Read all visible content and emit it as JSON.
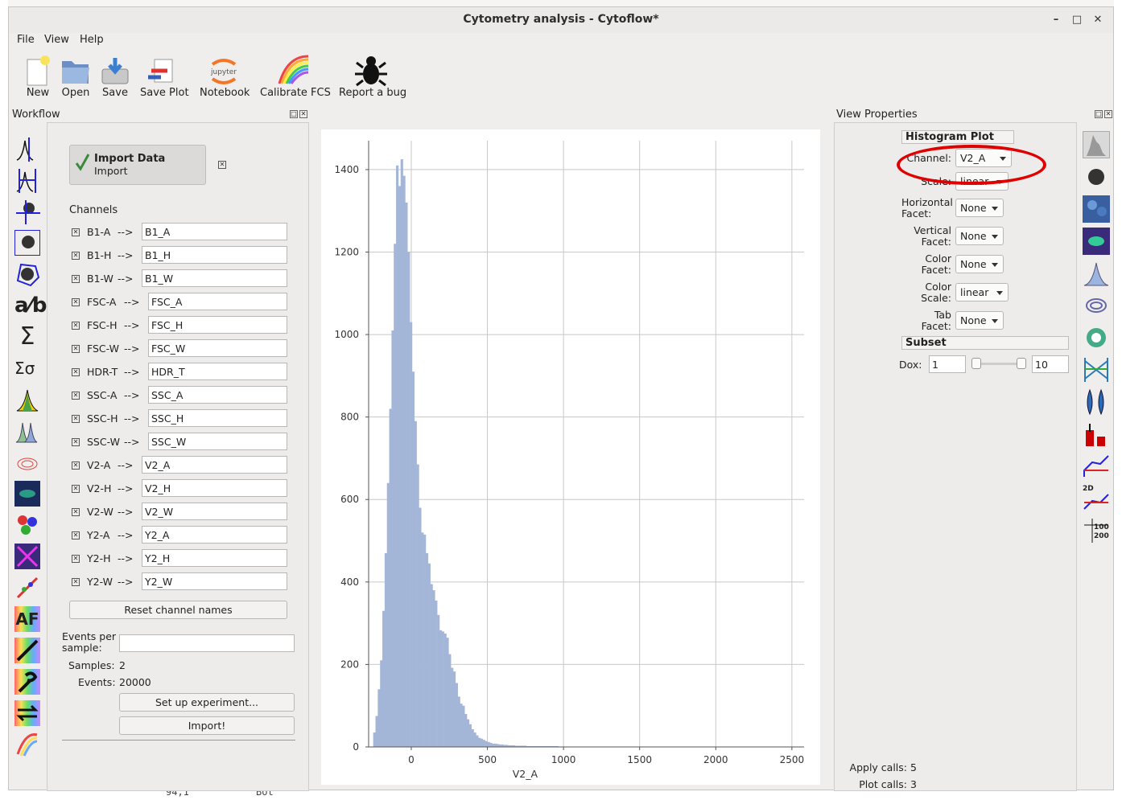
{
  "window": {
    "title": "Cytometry analysis - Cytoflow*"
  },
  "menu": {
    "file": "File",
    "view": "View",
    "help": "Help"
  },
  "toolbar": {
    "new": "New",
    "open": "Open",
    "save": "Save",
    "save_plot": "Save Plot",
    "notebook": "Notebook",
    "calibrate": "Calibrate FCS",
    "report_bug": "Report a bug",
    "jupyter_text": "jupyter"
  },
  "workflow": {
    "title": "Workflow",
    "import_item": {
      "title": "Import Data",
      "subtitle": "Import"
    },
    "channels_label": "Channels",
    "channels": [
      {
        "from": "B1-A",
        "to": "B1_A"
      },
      {
        "from": "B1-H",
        "to": "B1_H"
      },
      {
        "from": "B1-W",
        "to": "B1_W"
      },
      {
        "from": "FSC-A",
        "to": "FSC_A"
      },
      {
        "from": "FSC-H",
        "to": "FSC_H"
      },
      {
        "from": "FSC-W",
        "to": "FSC_W"
      },
      {
        "from": "HDR-T",
        "to": "HDR_T"
      },
      {
        "from": "SSC-A",
        "to": "SSC_A"
      },
      {
        "from": "SSC-H",
        "to": "SSC_H"
      },
      {
        "from": "SSC-W",
        "to": "SSC_W"
      },
      {
        "from": "V2-A",
        "to": "V2_A"
      },
      {
        "from": "V2-H",
        "to": "V2_H"
      },
      {
        "from": "V2-W",
        "to": "V2_W"
      },
      {
        "from": "Y2-A",
        "to": "Y2_A"
      },
      {
        "from": "Y2-H",
        "to": "Y2_H"
      },
      {
        "from": "Y2-W",
        "to": "Y2_W"
      }
    ],
    "arrow": "-->",
    "reset_label": "Reset channel names",
    "events_per_sample_label": "Events per sample:",
    "events_per_sample_value": "",
    "samples_label": "Samples:",
    "samples_value": "2",
    "events_label": "Events:",
    "events_value": "20000",
    "setup_label": "Set up experiment...",
    "import_label": "Import!"
  },
  "view_properties": {
    "title": "View Properties",
    "histogram_title": "Histogram Plot",
    "channel_label": "Channel:",
    "channel_value": "V2_A",
    "scale_label": "Scale:",
    "scale_value": "linear",
    "hfacet_label": "Horizontal Facet:",
    "hfacet_value": "None",
    "vfacet_label": "Vertical Facet:",
    "vfacet_value": "None",
    "colorfacet_label": "Color Facet:",
    "colorfacet_value": "None",
    "colorscale_label": "Color Scale:",
    "colorscale_value": "linear",
    "tabfacet_label": "Tab Facet:",
    "tabfacet_value": "None",
    "subset_title": "Subset",
    "dox_label": "Dox:",
    "dox_min": "1",
    "dox_max": "10",
    "dox_slider_position": 0.0,
    "apply_calls_label": "Apply calls:",
    "apply_calls_value": "5",
    "plot_calls_label": "Plot calls:",
    "plot_calls_value": "3"
  },
  "background": {
    "bottom_left": "94,1",
    "bottom_right": "Bot"
  },
  "chart_data": {
    "type": "bar",
    "xlabel": "V2_A",
    "ylabel": "",
    "bin_width": 15,
    "x_start": -250,
    "xlim": [
      -280,
      2580
    ],
    "ylim": [
      0,
      1470
    ],
    "xticks": [
      0,
      500,
      1000,
      1500,
      2000,
      2500
    ],
    "yticks": [
      0,
      200,
      400,
      600,
      800,
      1000,
      1200,
      1400
    ],
    "color": "#a4b6d8",
    "grid": true,
    "values": [
      35,
      75,
      140,
      210,
      330,
      470,
      640,
      820,
      1010,
      1220,
      1410,
      1360,
      1425,
      1385,
      1320,
      1200,
      1030,
      910,
      790,
      685,
      580,
      520,
      515,
      470,
      445,
      395,
      380,
      355,
      320,
      283,
      280,
      275,
      265,
      225,
      192,
      183,
      155,
      122,
      105,
      100,
      80,
      67,
      55,
      43,
      35,
      28,
      22,
      20,
      17,
      14,
      12,
      10,
      8,
      8,
      7,
      6,
      6,
      5,
      5,
      4,
      4,
      4,
      3,
      3,
      3,
      3,
      3,
      2,
      2,
      2,
      2,
      2,
      2,
      2,
      2,
      2,
      2,
      2,
      2,
      2,
      2,
      1,
      1,
      1,
      1,
      1,
      1,
      1,
      1,
      1,
      1,
      1,
      1,
      1,
      1,
      1,
      1,
      1,
      1,
      1,
      1,
      1,
      1,
      1,
      1,
      1,
      1,
      1,
      1,
      1,
      1,
      1,
      1,
      1,
      1,
      1,
      1,
      1,
      1,
      1,
      1,
      1,
      1,
      1,
      1,
      1,
      1,
      1,
      1,
      1,
      1,
      1,
      1,
      1,
      1,
      1,
      1,
      1,
      1,
      1,
      1,
      1,
      1,
      1,
      1,
      1,
      1,
      1,
      1,
      1,
      1,
      1,
      1,
      1,
      1,
      1,
      1,
      1,
      1,
      1,
      1,
      1,
      1,
      1,
      1,
      1,
      1,
      1,
      1,
      1,
      1,
      1,
      1,
      1,
      1,
      1,
      1,
      1,
      1,
      1,
      1,
      1,
      1,
      1,
      1
    ]
  }
}
